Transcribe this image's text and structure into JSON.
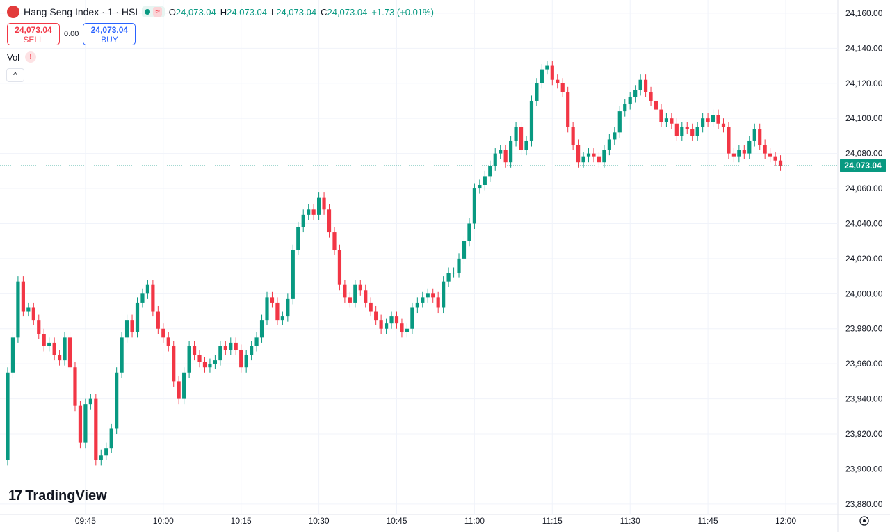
{
  "header": {
    "symbol": "Hang Seng Index · 1 · HSI",
    "open_label": "O",
    "open": "24,073.04",
    "high_label": "H",
    "high": "24,073.04",
    "low_label": "L",
    "low": "24,073.04",
    "close_label": "C",
    "close": "24,073.04",
    "change": "+1.73 (+0.01%)",
    "sell_price": "24,073.04",
    "sell": "SELL",
    "spread": "0.00",
    "buy_price": "24,073.04",
    "buy": "BUY",
    "volume": "Vol",
    "brand": "TradingView",
    "last_price_label": "24,073.04"
  },
  "chart_data": {
    "type": "candlestick",
    "up_color": "#089981",
    "down_color": "#f23645",
    "grid": true,
    "x": [
      "09:30",
      "09:31",
      "09:32",
      "09:33",
      "09:34",
      "09:35",
      "09:36",
      "09:37",
      "09:38",
      "09:39",
      "09:40",
      "09:41",
      "09:42",
      "09:43",
      "09:44",
      "09:45",
      "09:46",
      "09:47",
      "09:48",
      "09:49",
      "09:50",
      "09:51",
      "09:52",
      "09:53",
      "09:54",
      "09:55",
      "09:56",
      "09:57",
      "09:58",
      "09:59",
      "10:00",
      "10:01",
      "10:02",
      "10:03",
      "10:04",
      "10:05",
      "10:06",
      "10:07",
      "10:08",
      "10:09",
      "10:10",
      "10:11",
      "10:12",
      "10:13",
      "10:14",
      "10:15",
      "10:16",
      "10:17",
      "10:18",
      "10:19",
      "10:20",
      "10:21",
      "10:22",
      "10:23",
      "10:24",
      "10:25",
      "10:26",
      "10:27",
      "10:28",
      "10:29",
      "10:30",
      "10:31",
      "10:32",
      "10:33",
      "10:34",
      "10:35",
      "10:36",
      "10:37",
      "10:38",
      "10:39",
      "10:40",
      "10:41",
      "10:42",
      "10:43",
      "10:44",
      "10:45",
      "10:46",
      "10:47",
      "10:48",
      "10:49",
      "10:50",
      "10:51",
      "10:52",
      "10:53",
      "10:54",
      "10:55",
      "10:56",
      "10:57",
      "10:58",
      "10:59",
      "11:00",
      "11:01",
      "11:02",
      "11:03",
      "11:04",
      "11:05",
      "11:06",
      "11:07",
      "11:08",
      "11:09",
      "11:10",
      "11:11",
      "11:12",
      "11:13",
      "11:14",
      "11:15",
      "11:16",
      "11:17",
      "11:18",
      "11:19",
      "11:20",
      "11:21",
      "11:22",
      "11:23",
      "11:24",
      "11:25",
      "11:26",
      "11:27",
      "11:28",
      "11:29",
      "11:30",
      "11:31",
      "11:32",
      "11:33",
      "11:34",
      "11:35",
      "11:36",
      "11:37",
      "11:38",
      "11:39",
      "11:40",
      "11:41",
      "11:42",
      "11:43",
      "11:44",
      "11:45",
      "11:46",
      "11:47",
      "11:48",
      "11:49",
      "11:50",
      "11:51",
      "11:52",
      "11:53",
      "11:54",
      "11:55",
      "11:56",
      "11:57",
      "11:58",
      "11:59"
    ],
    "open": [
      23905,
      23955,
      23975,
      24007,
      23990,
      23992,
      23985,
      23977,
      23970,
      23972,
      23965,
      23962,
      23975,
      23958,
      23936,
      23915,
      23937,
      23940,
      23905,
      23908,
      23912,
      23923,
      23955,
      23975,
      23985,
      23978,
      23995,
      24000,
      24005,
      23990,
      23980,
      23975,
      23970,
      23950,
      23940,
      23955,
      23970,
      23965,
      23961,
      23958,
      23960,
      23962,
      23970,
      23968,
      23972,
      23968,
      23958,
      23965,
      23970,
      23975,
      23985,
      23998,
      23995,
      23985,
      23987,
      23997,
      24025,
      24038,
      24045,
      24048,
      24045,
      24055,
      24048,
      24035,
      24025,
      24005,
      23998,
      23995,
      24005,
      24002,
      23995,
      23990,
      23985,
      23980,
      23983,
      23987,
      23983,
      23978,
      23980,
      23992,
      23995,
      23998,
      24000,
      23998,
      23992,
      24007,
      24012,
      24012,
      24020,
      24030,
      24040,
      24060,
      24062,
      24067,
      24073,
      24080,
      24082,
      24075,
      24087,
      24095,
      24082,
      24087,
      24110,
      24120,
      24128,
      24130,
      24122,
      24120,
      24115,
      24095,
      24085,
      24075,
      24078,
      24080,
      24078,
      24075,
      24082,
      24088,
      24092,
      24104,
      24108,
      24112,
      24116,
      24122,
      24115,
      24110,
      24105,
      24098,
      24100,
      24097,
      24090,
      24095,
      24094,
      24090,
      24095,
      24100,
      24098,
      24102,
      24097,
      24095,
      24080,
      24078,
      24082,
      24080,
      24087,
      24094,
      24085,
      24080,
      24078,
      24076
    ],
    "high": [
      23958,
      23978,
      24010,
      24010,
      23995,
      23995,
      23988,
      23980,
      23975,
      23975,
      23968,
      23978,
      23978,
      23961,
      23939,
      23940,
      23943,
      23943,
      23911,
      23915,
      23926,
      23958,
      23978,
      23988,
      23988,
      23998,
      24003,
      24008,
      24008,
      23993,
      23983,
      23978,
      23973,
      23953,
      23958,
      23973,
      23973,
      23968,
      23964,
      23963,
      23965,
      23973,
      23973,
      23975,
      23975,
      23971,
      23968,
      23973,
      23978,
      23988,
      24001,
      24001,
      23998,
      23990,
      24000,
      24028,
      24041,
      24048,
      24051,
      24051,
      24058,
      24058,
      24051,
      24038,
      24028,
      24008,
      24001,
      24008,
      24008,
      24005,
      23998,
      23993,
      23988,
      23986,
      23990,
      23990,
      23986,
      23983,
      23995,
      23998,
      24001,
      24003,
      24003,
      24001,
      24010,
      24015,
      24015,
      24023,
      24033,
      24043,
      24063,
      24065,
      24070,
      24076,
      24083,
      24085,
      24085,
      24090,
      24098,
      24098,
      24090,
      24113,
      24123,
      24131,
      24133,
      24133,
      24125,
      24123,
      24118,
      24098,
      24088,
      24081,
      24083,
      24083,
      24081,
      24085,
      24091,
      24095,
      24107,
      24111,
      24115,
      24119,
      24125,
      24125,
      24118,
      24113,
      24108,
      24103,
      24103,
      24100,
      24098,
      24098,
      24097,
      24098,
      24103,
      24103,
      24105,
      24105,
      24100,
      24098,
      24083,
      24085,
      24085,
      24090,
      24097,
      24097,
      24088,
      24083,
      24081,
      24079
    ],
    "low": [
      23902,
      23952,
      23972,
      23987,
      23987,
      23982,
      23974,
      23967,
      23967,
      23962,
      23959,
      23959,
      23955,
      23933,
      23912,
      23912,
      23934,
      23902,
      23902,
      23905,
      23909,
      23920,
      23952,
      23972,
      23975,
      23975,
      23992,
      23997,
      23987,
      23977,
      23972,
      23967,
      23947,
      23937,
      23937,
      23952,
      23962,
      23958,
      23955,
      23955,
      23957,
      23959,
      23965,
      23965,
      23965,
      23955,
      23955,
      23962,
      23967,
      23972,
      23982,
      23992,
      23982,
      23982,
      23984,
      23994,
      24022,
      24035,
      24042,
      24042,
      24042,
      24045,
      24032,
      24022,
      24002,
      23995,
      23992,
      23992,
      23999,
      23992,
      23987,
      23982,
      23977,
      23977,
      23980,
      23980,
      23975,
      23975,
      23977,
      23989,
      23992,
      23995,
      23995,
      23989,
      23989,
      24004,
      24009,
      24009,
      24017,
      24027,
      24037,
      24057,
      24059,
      24064,
      24070,
      24077,
      24072,
      24072,
      24084,
      24079,
      24079,
      24084,
      24107,
      24117,
      24125,
      24119,
      24117,
      24112,
      24092,
      24082,
      24072,
      24072,
      24075,
      24075,
      24072,
      24072,
      24079,
      24085,
      24089,
      24101,
      24105,
      24109,
      24113,
      24112,
      24107,
      24102,
      24095,
      24095,
      24094,
      24087,
      24087,
      24091,
      24087,
      24087,
      24092,
      24095,
      24095,
      24094,
      24092,
      24077,
      24075,
      24075,
      24077,
      24077,
      24084,
      24082,
      24077,
      24075,
      24073,
      24070
    ],
    "close": [
      23955,
      23975,
      24007,
      23990,
      23992,
      23985,
      23977,
      23970,
      23972,
      23965,
      23962,
      23975,
      23958,
      23936,
      23915,
      23937,
      23940,
      23905,
      23908,
      23912,
      23923,
      23955,
      23975,
      23985,
      23978,
      23995,
      24000,
      24005,
      23990,
      23980,
      23975,
      23970,
      23950,
      23940,
      23955,
      23970,
      23965,
      23961,
      23958,
      23960,
      23962,
      23970,
      23968,
      23972,
      23968,
      23958,
      23965,
      23970,
      23975,
      23985,
      23998,
      23995,
      23985,
      23987,
      23997,
      24025,
      24038,
      24045,
      24048,
      24045,
      24055,
      24048,
      24035,
      24025,
      24005,
      23998,
      23995,
      24005,
      24002,
      23995,
      23990,
      23985,
      23980,
      23983,
      23987,
      23983,
      23978,
      23980,
      23992,
      23995,
      23998,
      24000,
      23998,
      23992,
      24007,
      24012,
      24012,
      24020,
      24030,
      24040,
      24060,
      24062,
      24067,
      24073,
      24080,
      24082,
      24075,
      24087,
      24095,
      24082,
      24087,
      24110,
      24120,
      24128,
      24130,
      24122,
      24120,
      24115,
      24095,
      24085,
      24075,
      24078,
      24080,
      24078,
      24075,
      24082,
      24088,
      24092,
      24104,
      24108,
      24112,
      24116,
      24122,
      24115,
      24110,
      24105,
      24098,
      24100,
      24097,
      24090,
      24095,
      24094,
      24090,
      24095,
      24100,
      24098,
      24102,
      24097,
      24095,
      24080,
      24078,
      24082,
      24080,
      24087,
      24094,
      24085,
      24080,
      24078,
      24076,
      24073.04
    ],
    "ylim": [
      23874,
      24167.5
    ],
    "yticks": [
      {
        "value": 23880,
        "label": "23,880.00"
      },
      {
        "value": 23900,
        "label": "23,900.00"
      },
      {
        "value": 23920,
        "label": "23,920.00"
      },
      {
        "value": 23940,
        "label": "23,940.00"
      },
      {
        "value": 23960,
        "label": "23,960.00"
      },
      {
        "value": 23980,
        "label": "23,980.00"
      },
      {
        "value": 24000,
        "label": "24,000.00"
      },
      {
        "value": 24020,
        "label": "24,020.00"
      },
      {
        "value": 24040,
        "label": "24,040.00"
      },
      {
        "value": 24060,
        "label": "24,060.00"
      },
      {
        "value": 24080,
        "label": "24,080.00"
      },
      {
        "value": 24100,
        "label": "24,100.00"
      },
      {
        "value": 24120,
        "label": "24,120.00"
      },
      {
        "value": 24140,
        "label": "24,140.00"
      },
      {
        "value": 24160,
        "label": "24,160.00"
      }
    ],
    "xticks": [
      "09:45",
      "10:00",
      "10:15",
      "10:30",
      "10:45",
      "11:00",
      "11:15",
      "11:30",
      "11:45",
      "12:00"
    ]
  }
}
